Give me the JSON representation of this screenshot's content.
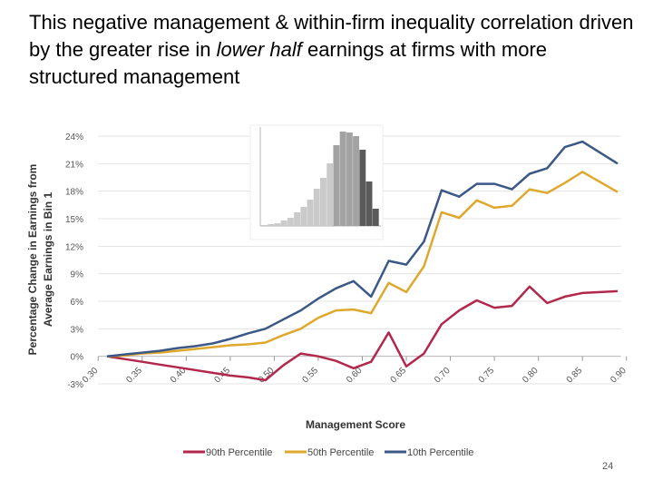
{
  "title": [
    "This negative management & within-firm inequality correlation driven by the greater rise in",
    "lower half",
    "earnings at firms with more structured management"
  ],
  "page_number": "24",
  "chart_data": {
    "type": "line",
    "x_label": "Management Score",
    "y_label": [
      "Percentage Change in Earnings from",
      "Average Earnings in Bin 1"
    ],
    "x": [
      0.31,
      0.33,
      0.35,
      0.37,
      0.39,
      0.41,
      0.43,
      0.45,
      0.47,
      0.49,
      0.51,
      0.53,
      0.55,
      0.57,
      0.59,
      0.61,
      0.63,
      0.65,
      0.67,
      0.69,
      0.71,
      0.73,
      0.75,
      0.77,
      0.79,
      0.81,
      0.83,
      0.85,
      0.87,
      0.89
    ],
    "series": [
      {
        "name": "90th Percentile",
        "color": "#b2284d",
        "values": [
          0,
          -0.3,
          -0.6,
          -0.9,
          -1.2,
          -1.5,
          -1.8,
          -2.1,
          -2.3,
          -2.6,
          -1.0,
          0.3,
          0.0,
          -0.5,
          -1.3,
          -0.6,
          2.6,
          -1.1,
          0.3,
          3.5,
          5.0,
          6.1,
          5.3,
          5.5,
          7.6,
          5.8,
          6.5,
          6.9,
          7.0,
          7.1
        ]
      },
      {
        "name": "50th Percentile",
        "color": "#dfa82c",
        "values": [
          0,
          0.1,
          0.3,
          0.4,
          0.6,
          0.8,
          1.0,
          1.2,
          1.3,
          1.5,
          2.3,
          3.0,
          4.2,
          5.0,
          5.1,
          4.7,
          8.0,
          7.0,
          9.8,
          15.7,
          15.1,
          17.0,
          16.2,
          16.4,
          18.2,
          17.8,
          18.9,
          20.1,
          19.0,
          17.9
        ]
      },
      {
        "name": "10th Percentile",
        "color": "#3b5886",
        "values": [
          0,
          0.2,
          0.4,
          0.6,
          0.9,
          1.1,
          1.4,
          1.9,
          2.5,
          3.0,
          4.0,
          5.0,
          6.3,
          7.4,
          8.2,
          6.5,
          10.4,
          10.0,
          12.5,
          18.1,
          17.4,
          18.8,
          18.8,
          18.2,
          19.9,
          20.5,
          22.8,
          23.4,
          22.2,
          21.0
        ]
      }
    ],
    "xlim": [
      0.3,
      0.9
    ],
    "xticks": [
      {
        "value": 0.3,
        "label": "0.30"
      },
      {
        "value": 0.35,
        "label": "0.35"
      },
      {
        "value": 0.4,
        "label": "0.40"
      },
      {
        "value": 0.45,
        "label": "0.45"
      },
      {
        "value": 0.5,
        "label": "0.50"
      },
      {
        "value": 0.55,
        "label": "0.55"
      },
      {
        "value": 0.6,
        "label": "0.60"
      },
      {
        "value": 0.65,
        "label": "0.65"
      },
      {
        "value": 0.7,
        "label": "0.70"
      },
      {
        "value": 0.75,
        "label": "0.75"
      },
      {
        "value": 0.8,
        "label": "0.80"
      },
      {
        "value": 0.85,
        "label": "0.85"
      },
      {
        "value": 0.9,
        "label": "0.90"
      }
    ],
    "ylim": [
      -3,
      24
    ],
    "yticks": [
      {
        "value": -3,
        "label": "-3%"
      },
      {
        "value": 0,
        "label": "0%"
      },
      {
        "value": 3,
        "label": "3%"
      },
      {
        "value": 6,
        "label": "6%"
      },
      {
        "value": 9,
        "label": "9%"
      },
      {
        "value": 12,
        "label": "12%"
      },
      {
        "value": 15,
        "label": "15%"
      },
      {
        "value": 18,
        "label": "18%"
      },
      {
        "value": 21,
        "label": "21%"
      },
      {
        "value": 24,
        "label": "24%"
      }
    ],
    "grid": true,
    "legend": "bottom",
    "inset": {
      "type": "histogram",
      "values": [
        1,
        2,
        3,
        6,
        9,
        15,
        21,
        29,
        41,
        53,
        69,
        89,
        104,
        103,
        99,
        84,
        49,
        19
      ],
      "colors": [
        "#cacaca",
        "#cacaca",
        "#cacaca",
        "#cacaca",
        "#cacaca",
        "#cacaca",
        "#cacaca",
        "#cacaca",
        "#cacaca",
        "#cacaca",
        "#cacaca",
        "#a3a3a3",
        "#a3a3a3",
        "#a3a3a3",
        "#a3a3a3",
        "#5a5a5a",
        "#5a5a5a",
        "#5a5a5a"
      ]
    }
  }
}
